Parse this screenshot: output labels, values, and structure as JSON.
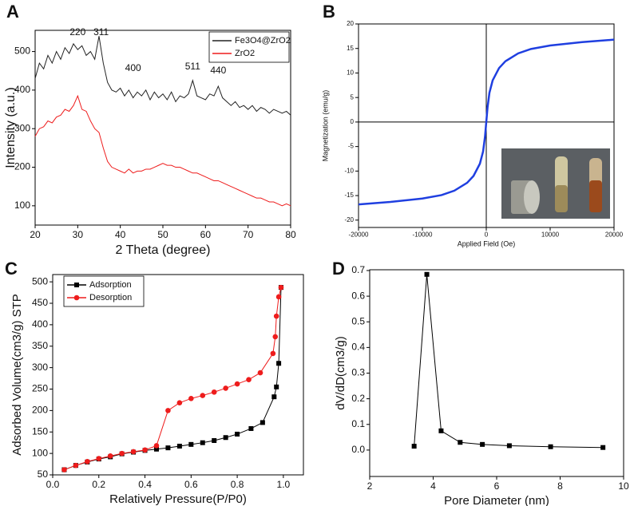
{
  "chart_data": [
    {
      "type": "line",
      "panel_label": "A",
      "xlabel": "2 Theta (degree)",
      "ylabel": "Intensity (a.u.)",
      "xlim": [
        20,
        80
      ],
      "ylim": [
        50,
        555
      ],
      "xticks": [
        20,
        30,
        40,
        50,
        60,
        70,
        80
      ],
      "yticks": [
        100,
        200,
        300,
        400,
        500
      ],
      "legend": "upper right",
      "marker": "none",
      "zero_lines": false,
      "x": [
        20,
        21,
        22,
        23,
        24,
        25,
        26,
        27,
        28,
        29,
        30,
        31,
        32,
        33,
        34,
        35,
        36,
        37,
        38,
        39,
        40,
        41,
        42,
        43,
        44,
        45,
        46,
        47,
        48,
        49,
        50,
        51,
        52,
        53,
        54,
        55,
        56,
        57,
        58,
        59,
        60,
        61,
        62,
        63,
        64,
        65,
        66,
        67,
        68,
        69,
        70,
        71,
        72,
        73,
        74,
        75,
        76,
        77,
        78,
        79,
        80
      ],
      "series": [
        {
          "name": "Fe3O4@ZrO2",
          "color": "#222222",
          "values": [
            430,
            470,
            455,
            490,
            470,
            500,
            480,
            510,
            495,
            520,
            505,
            515,
            490,
            500,
            480,
            540,
            470,
            420,
            400,
            395,
            405,
            385,
            400,
            380,
            395,
            385,
            400,
            375,
            395,
            380,
            390,
            375,
            395,
            370,
            385,
            380,
            390,
            425,
            385,
            380,
            375,
            390,
            385,
            410,
            380,
            370,
            360,
            370,
            355,
            360,
            350,
            360,
            345,
            355,
            350,
            340,
            350,
            345,
            340,
            345,
            335
          ]
        },
        {
          "name": "ZrO2",
          "color": "#ee1c1c",
          "values": [
            280,
            300,
            305,
            320,
            315,
            330,
            335,
            350,
            345,
            360,
            385,
            350,
            345,
            320,
            300,
            290,
            250,
            215,
            200,
            195,
            190,
            185,
            195,
            185,
            190,
            190,
            195,
            195,
            200,
            205,
            210,
            205,
            205,
            200,
            200,
            195,
            190,
            185,
            185,
            180,
            175,
            170,
            165,
            165,
            160,
            155,
            150,
            145,
            140,
            135,
            130,
            125,
            120,
            120,
            115,
            110,
            110,
            105,
            100,
            105,
            100
          ]
        }
      ],
      "annotations": [
        {
          "text": "220",
          "x": 30,
          "y": 549
        },
        {
          "text": "311",
          "x": 35.5,
          "y": 549
        },
        {
          "text": "400",
          "x": 43,
          "y": 456
        },
        {
          "text": "511",
          "x": 57,
          "y": 460
        },
        {
          "text": "440",
          "x": 63,
          "y": 450
        }
      ]
    },
    {
      "type": "line",
      "panel_label": "B",
      "xlabel": "Applied Field (Oe)",
      "ylabel": "Magnetization (emu/g)",
      "xlim": [
        -20000,
        20000
      ],
      "ylim": [
        -21.5,
        20
      ],
      "xticks": [
        -20000,
        -10000,
        0,
        10000,
        20000
      ],
      "yticks": [
        -20,
        -15,
        -10,
        -5,
        0,
        5,
        10,
        15,
        20
      ],
      "marker": "none",
      "zero_lines": true,
      "x": [
        -20000,
        -15000,
        -10000,
        -7000,
        -5000,
        -3000,
        -2000,
        -1000,
        -500,
        -200,
        0,
        200,
        500,
        1000,
        2000,
        3000,
        5000,
        7000,
        10000,
        15000,
        20000
      ],
      "series": [
        {
          "color": "#1f3fe0",
          "values": [
            -16.8,
            -16.3,
            -15.6,
            -14.9,
            -14.0,
            -12.4,
            -11.0,
            -8.5,
            -6,
            -3,
            0,
            3,
            6,
            8.5,
            11,
            12.4,
            14,
            14.9,
            15.6,
            16.3,
            16.8
          ]
        }
      ]
    },
    {
      "type": "line",
      "panel_label": "C",
      "xlabel": "Relatively Pressure(P/P0)",
      "ylabel": "Adsorbed Volume(cm3/g) STP",
      "xlim": [
        0,
        1.087
      ],
      "ylim": [
        50,
        517
      ],
      "xticks": [
        {
          "value": 0,
          "label": "0.0"
        },
        0.2,
        0.4,
        0.6,
        0.8,
        {
          "value": 1,
          "label": "1.0"
        }
      ],
      "yticks": [
        50,
        100,
        150,
        200,
        250,
        300,
        350,
        400,
        450,
        500
      ],
      "legend": "upper left",
      "zero_lines": false,
      "series": [
        {
          "name": "Adsorption",
          "color": "#000000",
          "marker": "square",
          "x": [
            0.05,
            0.1,
            0.15,
            0.2,
            0.25,
            0.3,
            0.35,
            0.4,
            0.45,
            0.5,
            0.55,
            0.6,
            0.65,
            0.7,
            0.75,
            0.8,
            0.86,
            0.91,
            0.96,
            0.97,
            0.98,
            0.99
          ],
          "values": [
            62,
            72,
            80,
            87,
            92,
            99,
            103,
            107,
            110,
            113,
            117,
            121,
            125,
            130,
            137,
            145,
            158,
            172,
            232,
            255,
            310,
            487
          ]
        },
        {
          "name": "Desorption",
          "color": "#ee1c1c",
          "marker": "circle",
          "x": [
            0.99,
            0.98,
            0.97,
            0.965,
            0.955,
            0.9,
            0.85,
            0.8,
            0.75,
            0.7,
            0.65,
            0.6,
            0.55,
            0.5,
            0.45,
            0.4,
            0.35,
            0.3,
            0.25,
            0.2,
            0.15,
            0.1,
            0.05
          ],
          "values": [
            487,
            465,
            420,
            372,
            333,
            288,
            272,
            262,
            252,
            243,
            235,
            228,
            218,
            200,
            118,
            108,
            104,
            100,
            94,
            88,
            81,
            72,
            62
          ]
        }
      ]
    },
    {
      "type": "line",
      "panel_label": "D",
      "xlabel": "Pore Diameter (nm)",
      "ylabel": "dV/dD(cm3/g)",
      "xlim": [
        2,
        10
      ],
      "ylim": [
        -0.103,
        0.703
      ],
      "xticks": [
        2,
        4,
        6,
        8,
        10
      ],
      "yticks": [
        {
          "value": 0,
          "label": "0.0"
        },
        0.1,
        0.2,
        0.3,
        0.4,
        0.5,
        0.6,
        0.7
      ],
      "zero_lines": false,
      "x": [
        3.4,
        3.8,
        4.25,
        4.85,
        5.55,
        6.4,
        7.7,
        9.35
      ],
      "series": [
        {
          "color": "#000000",
          "marker": "square",
          "values": [
            0.015,
            0.685,
            0.075,
            0.03,
            0.022,
            0.017,
            0.013,
            0.01
          ]
        }
      ]
    }
  ]
}
